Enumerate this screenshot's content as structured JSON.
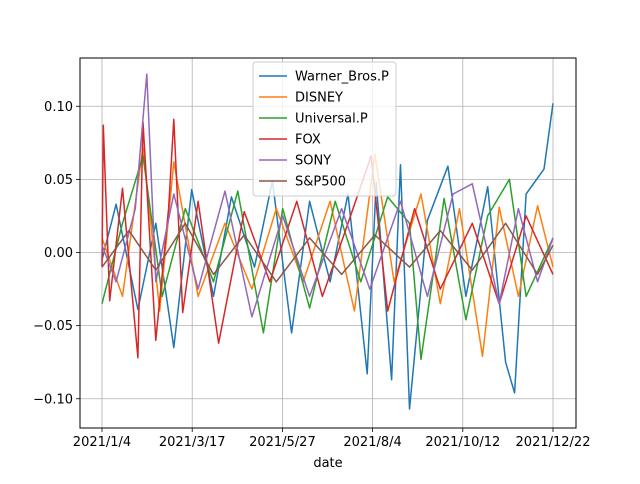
{
  "chart_data": {
    "type": "line",
    "title": "",
    "xlabel": "date",
    "ylabel": "",
    "x_ticks": [
      "2021/1/4",
      "2021/3/17",
      "2021/5/27",
      "2021/8/4",
      "2021/10/12",
      "2021/12/22"
    ],
    "x_range": [
      "2021-01-04",
      "2021-12-22"
    ],
    "y_ticks": [
      -0.1,
      -0.05,
      0.0,
      0.05,
      0.1
    ],
    "y_tick_labels": [
      "−0.10",
      "−0.05",
      "0.00",
      "0.05",
      "0.10"
    ],
    "ylim": [
      -0.12,
      0.133
    ],
    "grid": true,
    "legend_position": "top-center",
    "series": [
      {
        "name": "Warner_Bros.P",
        "color": "#1f77b4",
        "dates": [
          "2021-01-04",
          "2021-01-15",
          "2021-02-01",
          "2021-02-15",
          "2021-03-01",
          "2021-03-15",
          "2021-04-01",
          "2021-04-15",
          "2021-05-03",
          "2021-05-17",
          "2021-06-01",
          "2021-06-15",
          "2021-07-01",
          "2021-07-15",
          "2021-07-30",
          "2021-08-06",
          "2021-08-18",
          "2021-08-25",
          "2021-09-01",
          "2021-09-15",
          "2021-10-01",
          "2021-10-15",
          "2021-11-01",
          "2021-11-15",
          "2021-11-22",
          "2021-12-01",
          "2021-12-15",
          "2021-12-22"
        ],
        "values": [
          -0.005,
          0.033,
          -0.039,
          0.02,
          -0.065,
          0.043,
          -0.03,
          0.038,
          -0.01,
          0.049,
          -0.055,
          0.035,
          -0.02,
          0.04,
          -0.083,
          0.048,
          -0.087,
          0.06,
          -0.107,
          0.022,
          0.059,
          -0.03,
          0.045,
          -0.075,
          -0.096,
          0.04,
          0.057,
          0.102
        ]
      },
      {
        "name": "DISNEY",
        "color": "#ff7f0e",
        "dates": [
          "2021-01-04",
          "2021-01-20",
          "2021-02-05",
          "2021-02-18",
          "2021-03-01",
          "2021-03-20",
          "2021-04-10",
          "2021-05-01",
          "2021-05-20",
          "2021-06-10",
          "2021-07-01",
          "2021-07-20",
          "2021-08-05",
          "2021-08-20",
          "2021-09-10",
          "2021-09-25",
          "2021-10-10",
          "2021-10-28",
          "2021-11-10",
          "2021-11-25",
          "2021-12-10",
          "2021-12-22"
        ],
        "values": [
          0.01,
          -0.03,
          0.072,
          -0.04,
          0.062,
          -0.03,
          0.02,
          -0.025,
          0.03,
          -0.02,
          0.035,
          -0.04,
          0.067,
          -0.02,
          0.04,
          -0.035,
          0.03,
          -0.071,
          0.031,
          -0.03,
          0.032,
          -0.01
        ]
      },
      {
        "name": "Universal.P",
        "color": "#2ca02c",
        "dates": [
          "2021-01-04",
          "2021-01-20",
          "2021-02-05",
          "2021-02-20",
          "2021-03-10",
          "2021-04-01",
          "2021-04-20",
          "2021-05-10",
          "2021-05-25",
          "2021-06-15",
          "2021-07-05",
          "2021-07-25",
          "2021-08-15",
          "2021-09-01",
          "2021-09-10",
          "2021-09-28",
          "2021-10-15",
          "2021-11-01",
          "2021-11-18",
          "2021-12-01",
          "2021-12-22"
        ],
        "values": [
          -0.035,
          0.02,
          0.066,
          -0.03,
          0.03,
          -0.02,
          0.042,
          -0.055,
          0.03,
          -0.038,
          0.035,
          -0.02,
          0.038,
          0.02,
          -0.073,
          0.037,
          -0.046,
          0.025,
          0.05,
          -0.03,
          0.01
        ]
      },
      {
        "name": "FOX",
        "color": "#d62728",
        "dates": [
          "2021-01-04",
          "2021-01-05",
          "2021-01-10",
          "2021-01-20",
          "2021-02-01",
          "2021-02-05",
          "2021-02-15",
          "2021-02-25",
          "2021-03-01",
          "2021-03-08",
          "2021-03-20",
          "2021-04-05",
          "2021-04-25",
          "2021-05-15",
          "2021-06-05",
          "2021-06-25",
          "2021-07-15",
          "2021-08-02",
          "2021-08-15",
          "2021-09-05",
          "2021-09-25",
          "2021-10-20",
          "2021-11-10",
          "2021-12-01",
          "2021-12-22"
        ],
        "values": [
          -0.01,
          0.087,
          -0.033,
          0.044,
          -0.072,
          0.089,
          -0.06,
          0.03,
          0.091,
          -0.041,
          0.035,
          -0.062,
          0.028,
          -0.02,
          0.035,
          -0.03,
          0.02,
          0.066,
          -0.04,
          0.03,
          -0.025,
          0.02,
          -0.035,
          0.025,
          -0.015
        ]
      },
      {
        "name": "SONY",
        "color": "#9467bd",
        "dates": [
          "2021-01-04",
          "2021-01-15",
          "2021-01-30",
          "2021-02-08",
          "2021-02-15",
          "2021-03-01",
          "2021-03-20",
          "2021-04-10",
          "2021-05-01",
          "2021-05-25",
          "2021-06-15",
          "2021-07-10",
          "2021-08-01",
          "2021-08-25",
          "2021-09-15",
          "2021-10-05",
          "2021-10-20",
          "2021-11-10",
          "2021-11-25",
          "2021-12-10",
          "2021-12-22"
        ],
        "values": [
          0.005,
          -0.02,
          0.03,
          0.122,
          -0.02,
          0.04,
          -0.025,
          0.042,
          -0.044,
          0.025,
          -0.03,
          0.03,
          -0.025,
          0.035,
          -0.03,
          0.04,
          0.047,
          -0.035,
          0.03,
          -0.02,
          0.01
        ]
      },
      {
        "name": "S&P500",
        "color": "#8c564b",
        "dates": [
          "2021-01-04",
          "2021-01-25",
          "2021-02-15",
          "2021-03-10",
          "2021-04-01",
          "2021-04-25",
          "2021-05-20",
          "2021-06-15",
          "2021-07-10",
          "2021-08-05",
          "2021-09-01",
          "2021-09-25",
          "2021-10-20",
          "2021-11-15",
          "2021-12-10",
          "2021-12-22"
        ],
        "values": [
          -0.01,
          0.015,
          -0.012,
          0.02,
          -0.015,
          0.012,
          -0.02,
          0.01,
          -0.015,
          0.012,
          -0.01,
          0.015,
          -0.012,
          0.02,
          -0.015,
          0.005
        ]
      }
    ]
  }
}
